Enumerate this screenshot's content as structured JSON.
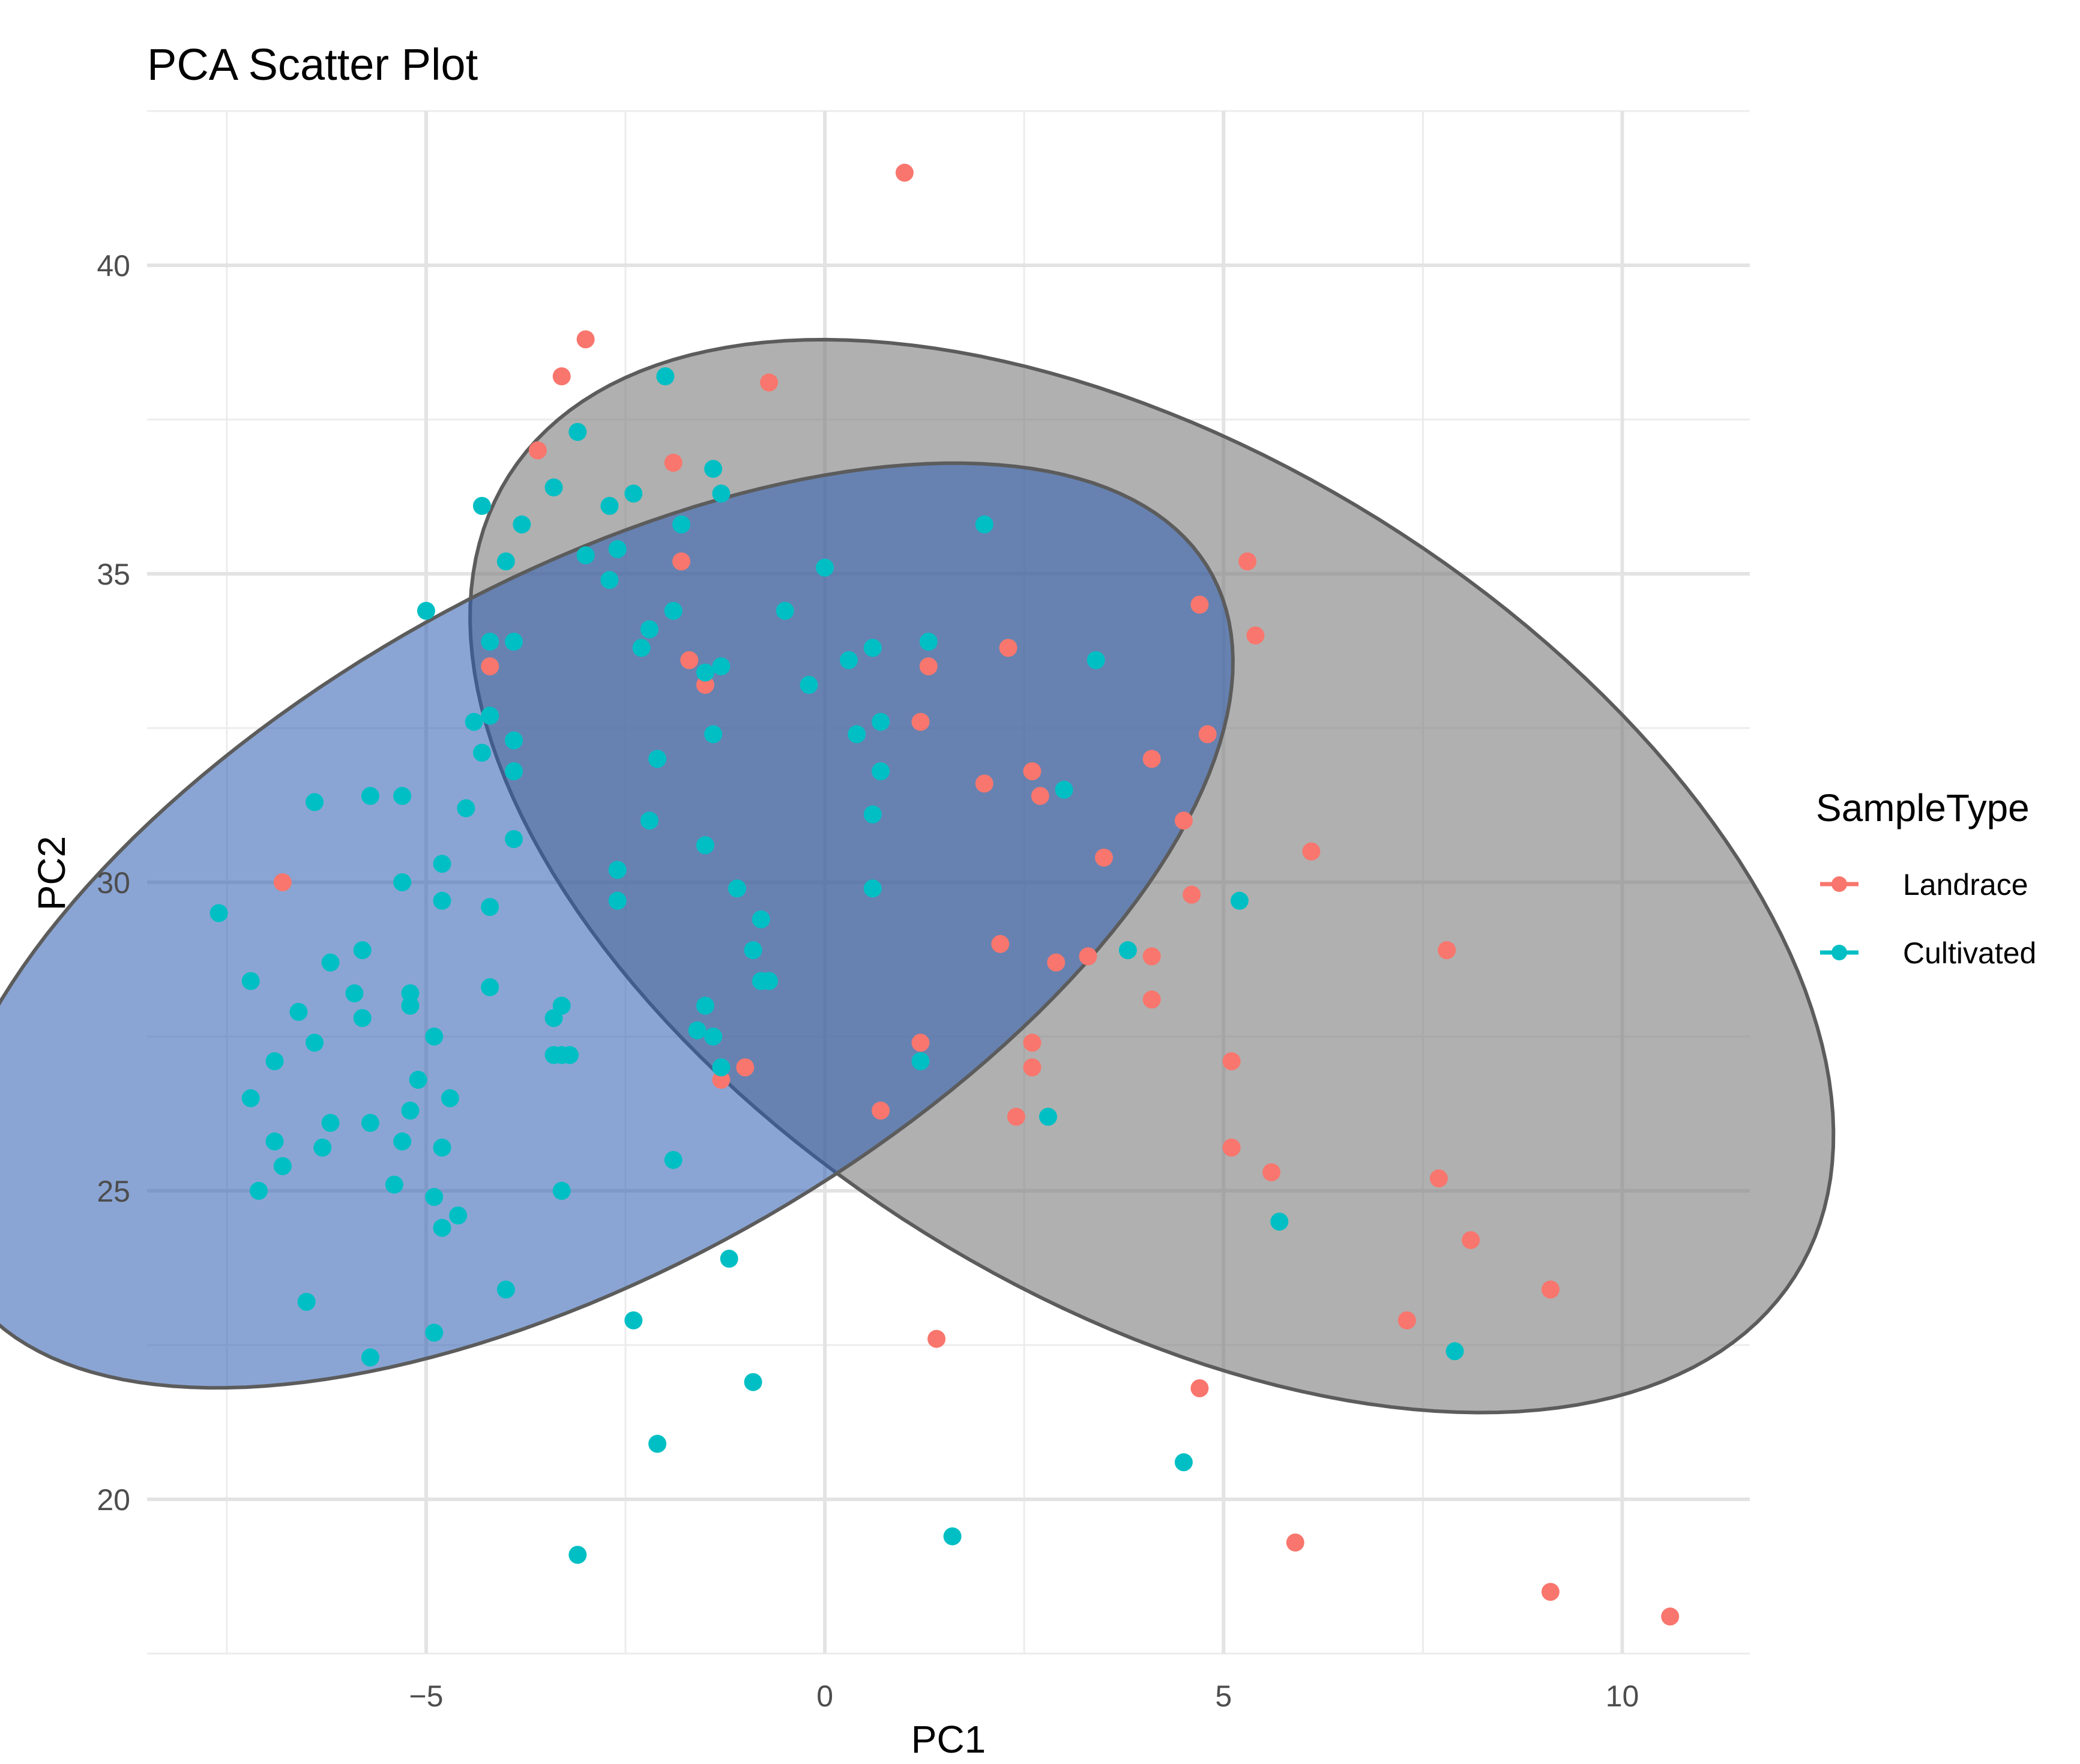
{
  "chart_data": {
    "type": "scatter",
    "title": "PCA Scatter Plot",
    "xlabel": "PC1",
    "ylabel": "PC2",
    "xlim": [
      -8.5,
      11.6
    ],
    "ylim": [
      17.5,
      42.5
    ],
    "xticks": [
      -5,
      0,
      5,
      10
    ],
    "xtick_labels": [
      "−5",
      "0",
      "5",
      "10"
    ],
    "yticks": [
      20,
      25,
      30,
      35,
      40
    ],
    "ytick_labels": [
      "20",
      "25",
      "30",
      "35",
      "40"
    ],
    "grid": true,
    "legend": {
      "title": "SampleType",
      "position": "right",
      "entries": [
        "Landrace",
        "Cultivated"
      ]
    },
    "ellipses": [
      {
        "name": "gray-ellipse",
        "cx": 4.1,
        "cy": 30.1,
        "rx": 10.5,
        "ry": 6.2,
        "angle_deg": -46,
        "fill": "#7f7f7f",
        "opacity": 0.62
      },
      {
        "name": "blue-ellipse",
        "cx": -3.0,
        "cy": 29.3,
        "rx": 9.8,
        "ry": 5.1,
        "angle_deg": 41,
        "fill": "#2f5fb3",
        "opacity": 0.56
      }
    ],
    "series": [
      {
        "name": "Landrace",
        "color": "#F8766D",
        "points": [
          [
            1.0,
            41.5
          ],
          [
            -3.0,
            38.8
          ],
          [
            -3.3,
            38.2
          ],
          [
            -0.7,
            38.1
          ],
          [
            -3.6,
            37.0
          ],
          [
            -1.9,
            36.8
          ],
          [
            -1.8,
            35.2
          ],
          [
            -4.2,
            33.5
          ],
          [
            -1.7,
            33.6
          ],
          [
            -1.5,
            33.2
          ],
          [
            -6.8,
            30.0
          ],
          [
            1.3,
            33.5
          ],
          [
            1.2,
            32.6
          ],
          [
            2.3,
            33.8
          ],
          [
            5.3,
            35.2
          ],
          [
            4.7,
            34.5
          ],
          [
            5.4,
            34.0
          ],
          [
            4.8,
            32.4
          ],
          [
            4.1,
            32.0
          ],
          [
            2.6,
            31.8
          ],
          [
            2.0,
            31.6
          ],
          [
            2.7,
            31.4
          ],
          [
            4.5,
            31.0
          ],
          [
            6.1,
            30.5
          ],
          [
            3.5,
            30.4
          ],
          [
            4.6,
            29.8
          ],
          [
            2.2,
            29.0
          ],
          [
            3.3,
            28.8
          ],
          [
            2.9,
            28.7
          ],
          [
            4.1,
            28.8
          ],
          [
            7.8,
            28.9
          ],
          [
            4.1,
            28.1
          ],
          [
            1.2,
            27.4
          ],
          [
            2.6,
            27.4
          ],
          [
            2.6,
            27.0
          ],
          [
            5.1,
            27.1
          ],
          [
            -1.0,
            27.0
          ],
          [
            -1.3,
            26.8
          ],
          [
            0.7,
            26.3
          ],
          [
            2.4,
            26.2
          ],
          [
            5.1,
            25.7
          ],
          [
            5.6,
            25.3
          ],
          [
            7.7,
            25.2
          ],
          [
            8.1,
            24.2
          ],
          [
            9.1,
            23.4
          ],
          [
            7.3,
            22.9
          ],
          [
            1.4,
            22.6
          ],
          [
            4.7,
            21.8
          ],
          [
            5.9,
            19.3
          ],
          [
            9.1,
            18.5
          ],
          [
            10.6,
            18.1
          ]
        ]
      },
      {
        "name": "Cultivated",
        "color": "#00BFC4",
        "points": [
          [
            -2.0,
            38.2
          ],
          [
            -3.1,
            37.3
          ],
          [
            -4.3,
            36.1
          ],
          [
            -3.4,
            36.4
          ],
          [
            -3.8,
            35.8
          ],
          [
            -1.4,
            36.7
          ],
          [
            -1.3,
            36.3
          ],
          [
            -2.4,
            36.3
          ],
          [
            -2.7,
            36.1
          ],
          [
            -1.8,
            35.8
          ],
          [
            2.0,
            35.8
          ],
          [
            -4.0,
            35.2
          ],
          [
            -3.0,
            35.3
          ],
          [
            -2.6,
            35.4
          ],
          [
            -2.7,
            34.9
          ],
          [
            0.0,
            35.1
          ],
          [
            -5.0,
            34.4
          ],
          [
            -2.2,
            34.1
          ],
          [
            -1.9,
            34.4
          ],
          [
            -0.5,
            34.4
          ],
          [
            -4.2,
            33.9
          ],
          [
            -3.9,
            33.9
          ],
          [
            -2.3,
            33.8
          ],
          [
            -1.5,
            33.4
          ],
          [
            -1.3,
            33.5
          ],
          [
            0.3,
            33.6
          ],
          [
            0.6,
            33.8
          ],
          [
            1.3,
            33.9
          ],
          [
            -0.2,
            33.2
          ],
          [
            -4.2,
            32.7
          ],
          [
            -4.4,
            32.6
          ],
          [
            -3.9,
            32.3
          ],
          [
            -4.3,
            32.1
          ],
          [
            -1.4,
            32.4
          ],
          [
            0.4,
            32.4
          ],
          [
            0.7,
            32.6
          ],
          [
            -2.1,
            32.0
          ],
          [
            0.7,
            31.8
          ],
          [
            -3.9,
            31.8
          ],
          [
            -6.4,
            31.3
          ],
          [
            -5.7,
            31.4
          ],
          [
            -5.3,
            31.4
          ],
          [
            -4.5,
            31.2
          ],
          [
            -2.2,
            31.0
          ],
          [
            0.6,
            31.1
          ],
          [
            -3.9,
            30.7
          ],
          [
            -1.5,
            30.6
          ],
          [
            -4.8,
            30.3
          ],
          [
            -5.3,
            30.0
          ],
          [
            -2.6,
            30.2
          ],
          [
            -2.6,
            29.7
          ],
          [
            -4.8,
            29.7
          ],
          [
            -4.2,
            29.6
          ],
          [
            -1.1,
            29.9
          ],
          [
            0.6,
            29.9
          ],
          [
            -7.6,
            29.5
          ],
          [
            -0.8,
            29.4
          ],
          [
            -0.9,
            28.9
          ],
          [
            -5.8,
            28.9
          ],
          [
            -6.2,
            28.7
          ],
          [
            -7.2,
            28.4
          ],
          [
            -5.9,
            28.2
          ],
          [
            -5.2,
            28.2
          ],
          [
            -5.2,
            28.0
          ],
          [
            -4.2,
            28.3
          ],
          [
            -0.8,
            28.4
          ],
          [
            -0.7,
            28.4
          ],
          [
            -6.6,
            27.9
          ],
          [
            -5.8,
            27.8
          ],
          [
            -3.3,
            28.0
          ],
          [
            -3.4,
            27.8
          ],
          [
            -1.5,
            28.0
          ],
          [
            -4.9,
            27.5
          ],
          [
            -1.6,
            27.6
          ],
          [
            -1.4,
            27.5
          ],
          [
            -6.4,
            27.4
          ],
          [
            -3.4,
            27.2
          ],
          [
            -3.3,
            27.2
          ],
          [
            -3.2,
            27.2
          ],
          [
            -6.9,
            27.1
          ],
          [
            -1.3,
            27.0
          ],
          [
            -5.1,
            26.8
          ],
          [
            1.2,
            27.1
          ],
          [
            -7.2,
            26.5
          ],
          [
            -5.2,
            26.3
          ],
          [
            -4.7,
            26.5
          ],
          [
            -6.2,
            26.1
          ],
          [
            -5.7,
            26.1
          ],
          [
            -6.9,
            25.8
          ],
          [
            -6.3,
            25.7
          ],
          [
            -5.3,
            25.8
          ],
          [
            -4.8,
            25.7
          ],
          [
            2.8,
            26.2
          ],
          [
            -6.8,
            25.4
          ],
          [
            -1.9,
            25.5
          ],
          [
            -7.1,
            25.0
          ],
          [
            -5.4,
            25.1
          ],
          [
            -4.9,
            24.9
          ],
          [
            -3.3,
            25.0
          ],
          [
            -4.6,
            24.6
          ],
          [
            -4.8,
            24.4
          ],
          [
            5.7,
            24.5
          ],
          [
            -1.2,
            23.9
          ],
          [
            -4.0,
            23.4
          ],
          [
            -6.5,
            23.2
          ],
          [
            -2.4,
            22.9
          ],
          [
            -4.9,
            22.7
          ],
          [
            -5.7,
            22.3
          ],
          [
            7.9,
            22.4
          ],
          [
            -0.9,
            21.9
          ],
          [
            -2.1,
            20.9
          ],
          [
            4.5,
            20.6
          ],
          [
            1.6,
            19.4
          ],
          [
            -3.1,
            19.1
          ],
          [
            3.0,
            31.5
          ],
          [
            3.4,
            33.6
          ],
          [
            3.8,
            28.9
          ],
          [
            5.2,
            29.7
          ]
        ]
      }
    ]
  }
}
